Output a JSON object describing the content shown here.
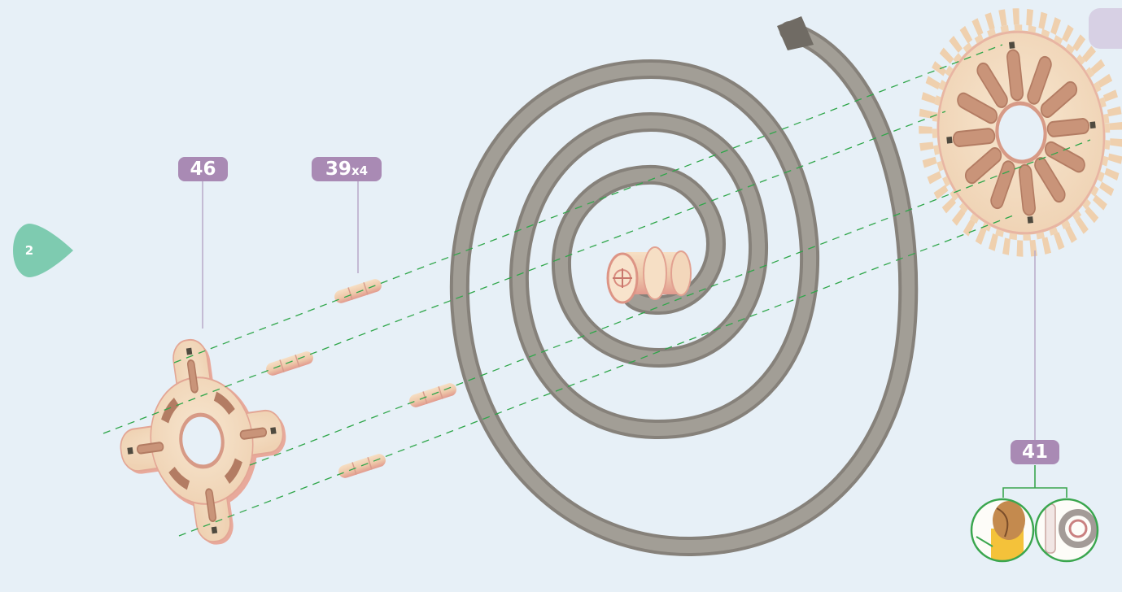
{
  "step": {
    "number": "2"
  },
  "parts": [
    {
      "id": "part-46",
      "label": "46",
      "multiplier": ""
    },
    {
      "id": "part-39",
      "label": "39",
      "multiplier": "x4"
    },
    {
      "id": "part-41",
      "label": "41",
      "multiplier": ""
    }
  ],
  "colors": {
    "background": "#e7f0f7",
    "tag": "#a98ab4",
    "step_arrow": "#7ecbb0",
    "guide_lines": "#2fa64a",
    "wood": "#f2dcc0",
    "wood_edge": "#e9a99c",
    "spring": "#8f8b83",
    "detail_ring": "#3aa64e"
  },
  "icons": [
    "step-arrow-icon",
    "wood-grain-detail-icon",
    "pink-edge-detail-icon"
  ]
}
